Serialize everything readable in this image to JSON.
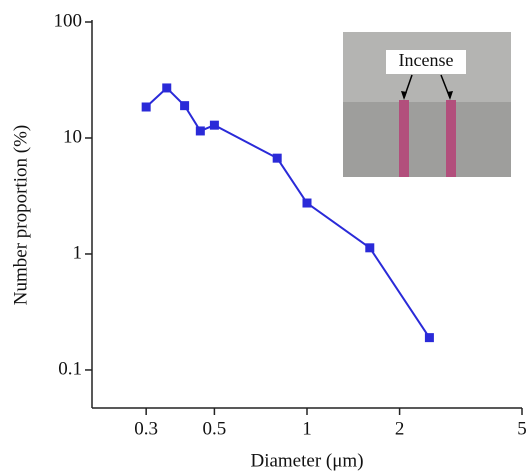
{
  "chart_data": {
    "type": "line",
    "x_label": "Diameter  (μm)",
    "y_label": "Number proportion  (%)",
    "annotation": "Incense",
    "x": [
      0.3,
      0.35,
      0.4,
      0.45,
      0.5,
      0.8,
      1,
      1.6,
      2.5
    ],
    "series": [
      {
        "color": "#2a2ad8",
        "values": [
          18.5,
          27,
          19,
          11.5,
          12.9,
          6.7,
          2.75,
          1.13,
          0.19
        ]
      }
    ],
    "xlim": [
      0.2,
      5
    ],
    "xticks": [
      0.3,
      0.5,
      1,
      2,
      5
    ],
    "ylim": [
      0.047,
      100
    ],
    "yticks": [
      0.1,
      1,
      10,
      100
    ],
    "x_log": true,
    "y_log": true
  }
}
